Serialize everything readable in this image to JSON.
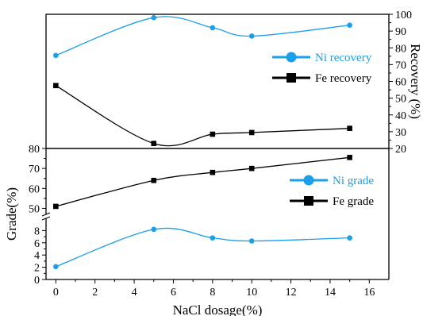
{
  "chart_data": [
    {
      "panel": "upper",
      "type": "line",
      "x": [
        0,
        5,
        8,
        10,
        15
      ],
      "series": [
        {
          "name": "Ni recovery",
          "values": [
            75.5,
            98,
            92,
            87,
            93.5
          ],
          "color": "#1a9fe8",
          "marker": "circle"
        },
        {
          "name": "Fe recovery",
          "values": [
            57.5,
            23,
            28.5,
            29.5,
            32
          ],
          "color": "#000000",
          "marker": "square"
        }
      ],
      "ylabel_right": "Recovery (%)",
      "ylim": [
        20,
        100
      ],
      "yticks": [
        "20",
        "30",
        "40",
        "50",
        "60",
        "70",
        "80",
        "90",
        "100"
      ],
      "legend_position": "right",
      "curve": "spline"
    },
    {
      "panel": "lower",
      "type": "line",
      "x": [
        0,
        5,
        8,
        10,
        15
      ],
      "xlabel": "NaCl dosage(%)",
      "xlim": [
        -0.5,
        17
      ],
      "xticks": [
        "0",
        "2",
        "4",
        "6",
        "8",
        "10",
        "12",
        "14",
        "16"
      ],
      "ylabel": "Grade(%)",
      "axis_break": true,
      "ylim_low": [
        0,
        10
      ],
      "yticks_low": [
        "0",
        "2",
        "4",
        "6",
        "8"
      ],
      "ylim_high": [
        47,
        80
      ],
      "yticks_high": [
        "50",
        "60",
        "70",
        "80"
      ],
      "series": [
        {
          "name": "Ni grade",
          "values": [
            2.1,
            8.2,
            6.8,
            6.3,
            6.8
          ],
          "color": "#1a9fe8",
          "marker": "circle"
        },
        {
          "name": "Fe grade",
          "values": [
            51,
            64,
            68,
            70,
            75.5
          ],
          "color": "#000000",
          "marker": "square"
        }
      ],
      "legend_position": "right",
      "curve": "spline"
    }
  ]
}
